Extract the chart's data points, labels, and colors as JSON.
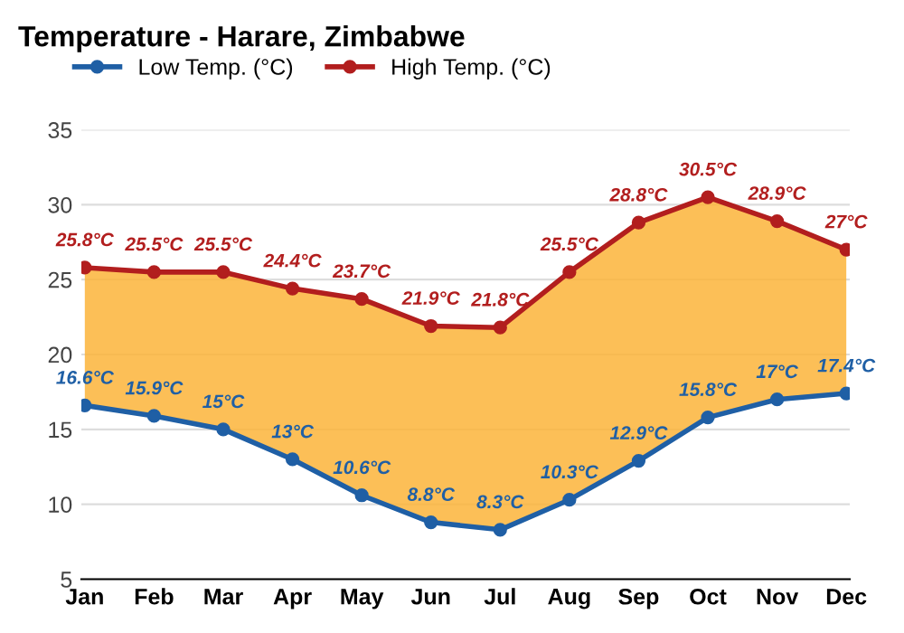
{
  "chart_data": {
    "type": "line",
    "title": "Temperature - Harare, Zimbabwe",
    "categories": [
      "Jan",
      "Feb",
      "Mar",
      "Apr",
      "May",
      "Jun",
      "Jul",
      "Aug",
      "Sep",
      "Oct",
      "Nov",
      "Dec"
    ],
    "series": [
      {
        "name": "Low Temp. (°C)",
        "color": "#1f5fa5",
        "values": [
          16.6,
          15.9,
          15,
          13,
          10.6,
          8.8,
          8.3,
          10.3,
          12.9,
          15.8,
          17,
          17.4
        ],
        "value_labels": [
          "16.6°C",
          "15.9°C",
          "15°C",
          "13°C",
          "10.6°C",
          "8.8°C",
          "8.3°C",
          "10.3°C",
          "12.9°C",
          "15.8°C",
          "17°C",
          "17.4°C"
        ]
      },
      {
        "name": "High Temp. (°C)",
        "color": "#b21e1e",
        "values": [
          25.8,
          25.5,
          25.5,
          24.4,
          23.7,
          21.9,
          21.8,
          25.5,
          28.8,
          30.5,
          28.9,
          27
        ],
        "value_labels": [
          "25.8°C",
          "25.5°C",
          "25.5°C",
          "24.4°C",
          "23.7°C",
          "21.9°C",
          "21.8°C",
          "25.5°C",
          "28.8°C",
          "30.5°C",
          "28.9°C",
          "27°C"
        ],
        "lower": [
          16.6,
          15.9,
          15,
          13,
          10.6,
          8.8,
          8.3,
          10.3,
          12.9,
          15.8,
          17,
          17.4
        ],
        "upper": [
          25.8,
          25.5,
          25.5,
          24.4,
          23.7,
          21.9,
          21.8,
          25.5,
          28.8,
          30.5,
          28.9,
          27
        ]
      }
    ],
    "ylim": [
      5,
      35
    ],
    "yticks": [
      5,
      10,
      15,
      20,
      25,
      30,
      35
    ],
    "grid": "y",
    "legend": "top left",
    "marker": "circle",
    "line_style": "solid"
  }
}
